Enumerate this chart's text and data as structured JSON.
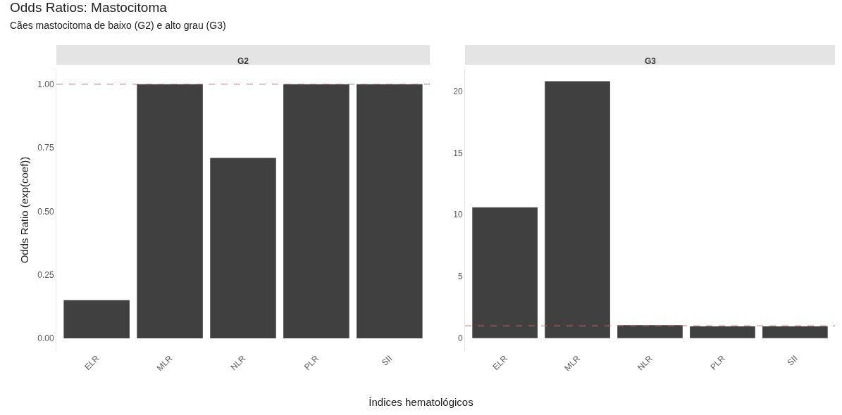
{
  "chart_data": [
    {
      "type": "bar",
      "title": "Odds Ratios: Mastocitoma",
      "subtitle": "Cães mastocitoma de baixo (G2) e alto grau (G3)",
      "xlabel": "Índices hematológicos",
      "ylabel": "Odds Ratio (exp(coef))",
      "annotations": [
        "G2"
      ],
      "categories": [
        "ELR",
        "MLR",
        "NLR",
        "PLR",
        "SII"
      ],
      "values": [
        0.15,
        1.0,
        0.71,
        1.0,
        1.0
      ],
      "color": "#404040",
      "ylim": [
        -0.05,
        1.06
      ],
      "yticks": [
        {
          "value": 0,
          "label": "0.00"
        },
        {
          "value": 0.25,
          "label": "0.25"
        },
        {
          "value": 0.5,
          "label": "0.50"
        },
        {
          "value": 0.75,
          "label": "0.75"
        },
        {
          "value": 1,
          "label": "1.00"
        }
      ],
      "grid": false,
      "ref_lines": [
        {
          "axis": "y",
          "value": 1,
          "color": "#e06070",
          "line_style": "dashed"
        }
      ]
    },
    {
      "type": "bar",
      "annotations": [
        "G3"
      ],
      "categories": [
        "ELR",
        "MLR",
        "NLR",
        "PLR",
        "SII"
      ],
      "values": [
        10.6,
        20.8,
        1.05,
        0.95,
        0.95
      ],
      "color": "#404040",
      "ylim": [
        -1.04,
        21.8
      ],
      "yticks": [
        0,
        5,
        10,
        15,
        20
      ],
      "grid": false,
      "ref_lines": [
        {
          "axis": "y",
          "value": 1,
          "color": "#e06070",
          "line_style": "dashed"
        }
      ]
    }
  ]
}
